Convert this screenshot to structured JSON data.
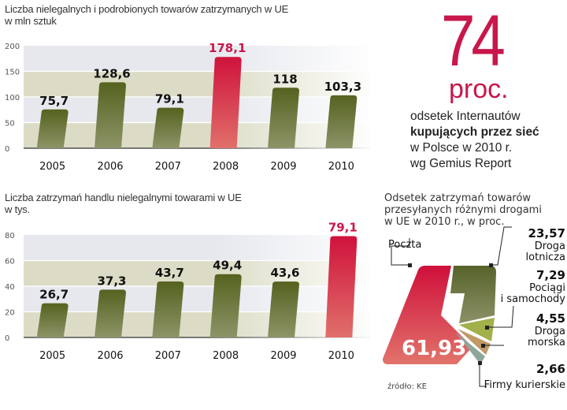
{
  "chart_data": [
    {
      "type": "bar",
      "title": "Liczba nielegalnych i podrobionych towarów zatrzymanych w UE",
      "subtitle": "w mln sztuk",
      "categories": [
        "2005",
        "2006",
        "2007",
        "2008",
        "2009",
        "2010"
      ],
      "values": [
        75.7,
        128.6,
        79.1,
        178.1,
        118,
        103.3
      ],
      "value_labels": [
        "75,7",
        "128,6",
        "79,1",
        "178,1",
        "118",
        "103,3"
      ],
      "highlight_index": 3,
      "yticks": [
        "0",
        "50",
        "100",
        "150",
        "200"
      ],
      "ylim": [
        0,
        200
      ],
      "xlabel": "",
      "ylabel": "",
      "grid": true
    },
    {
      "type": "bar",
      "title": "Liczba zatrzymań handlu nielegalnymi towarami w UE",
      "subtitle": "w tys.",
      "categories": [
        "2005",
        "2006",
        "2007",
        "2008",
        "2009",
        "2010"
      ],
      "values": [
        26.7,
        37.3,
        43.7,
        49.4,
        43.6,
        79.1
      ],
      "value_labels": [
        "26,7",
        "37,3",
        "43,7",
        "49,4",
        "43,6",
        "79,1"
      ],
      "highlight_index": 5,
      "yticks": [
        "0",
        "20",
        "40",
        "60",
        "80"
      ],
      "ylim": [
        0,
        80
      ],
      "xlabel": "",
      "ylabel": "",
      "grid": true
    },
    {
      "type": "pie",
      "title": "Odsetek zatrzymań towarów przesyłanych różnymi drogami w UE w 2010 r., w proc.",
      "slices": [
        {
          "label": "Poczta",
          "value": 61.93,
          "value_label": "61,93",
          "color": "#d8283f"
        },
        {
          "label": "Droga lotnicza",
          "value": 23.57,
          "value_label": "23,57",
          "color": "#5f6a2c"
        },
        {
          "label": "Pociągi i samochody",
          "value": 7.29,
          "value_label": "7,29",
          "color": "#a2b04a"
        },
        {
          "label": "Droga morska",
          "value": 4.55,
          "value_label": "4,55",
          "color": "#c09a66"
        },
        {
          "label": "Firmy kurierskie",
          "value": 2.66,
          "value_label": "2,66",
          "color": "#8fa69a"
        }
      ],
      "source": "źródło: KE"
    }
  ],
  "colors": {
    "bar": "#5d6a2b",
    "bar_highlight": "#d01f42",
    "highlight_text": "#c8174a",
    "band_dark": "#dcdcc6",
    "band_light": "#e6e8ee"
  },
  "header1": {
    "line1": "Liczba nielegalnych i podrobionych towarów zatrzymanych w UE",
    "line2": "w mln sztuk"
  },
  "header2": {
    "line1": "Liczba zatrzymań handlu nielegalnymi towarami w UE",
    "line2": "w tys."
  },
  "stat": {
    "value": "74",
    "unit": "proc.",
    "line1": "odsetek Internautów",
    "line2_bold": "kupujących przez sieć",
    "line3": "w Polsce w 2010 r.",
    "line4": "wg Gemius Report"
  },
  "pie_header": {
    "line1": "Odsetek zatrzymań towarów",
    "line2": "przesyłanych różnymi drogami",
    "line3": "w UE w 2010 r., w proc."
  },
  "pie_labels": {
    "poczta": "Poczta",
    "lot_val": "23,57",
    "lot_1": "Droga",
    "lot_2": "lotnicza",
    "poc_val": "7,29",
    "poc_1": "Pociągi",
    "poc_2": "i samochody",
    "mor_val": "4,55",
    "mor_1": "Droga",
    "mor_2": "morska",
    "kur_val": "2,66",
    "kur_1": "Firmy kurierskie",
    "main_val": "61,93",
    "source": "źródło: KE"
  }
}
